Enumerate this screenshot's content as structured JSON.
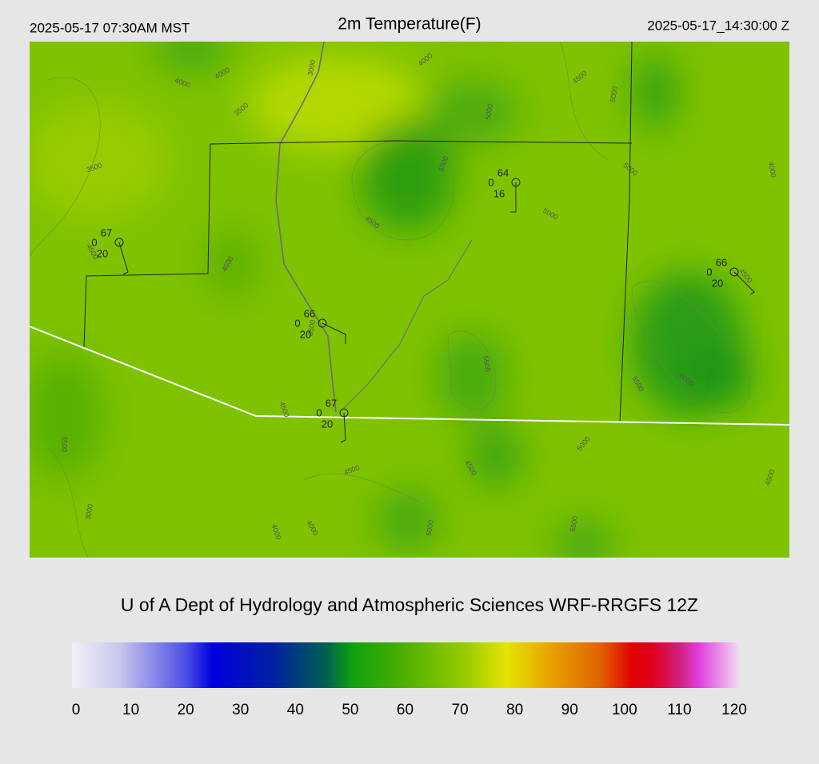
{
  "header": {
    "local_time": "2025-05-17 07:30AM MST",
    "title": "2m Temperature(F)",
    "utc_time": "2025-05-17_14:30:00 Z"
  },
  "contour_labels": [
    "4000",
    "4000",
    "3500",
    "3000",
    "4000",
    "4500",
    "5000",
    "5000",
    "5000",
    "5000",
    "4000",
    "3500",
    "4500",
    "5000",
    "4500",
    "4500",
    "4500",
    "3500",
    "5500",
    "5500",
    "6000",
    "4500",
    "3500",
    "4500",
    "4500",
    "5000",
    "4500",
    "3000",
    "4000",
    "4000",
    "5000",
    "5500"
  ],
  "stations": [
    {
      "temperature": "67",
      "left": "0",
      "below": "20"
    },
    {
      "temperature": "64",
      "left": "0",
      "below": "16"
    },
    {
      "temperature": "66",
      "left": "0",
      "below": "20"
    },
    {
      "temperature": "66",
      "left": "0",
      "below": "20"
    },
    {
      "temperature": "67",
      "left": "0",
      "below": "20"
    }
  ],
  "credit": "U of A Dept of Hydrology and Atmospheric Sciences WRF-RRGFS 12Z",
  "colorbar": {
    "lim": [
      0,
      120
    ],
    "ticks": [
      0,
      10,
      20,
      30,
      40,
      50,
      60,
      70,
      80,
      90,
      100,
      110,
      120
    ]
  }
}
